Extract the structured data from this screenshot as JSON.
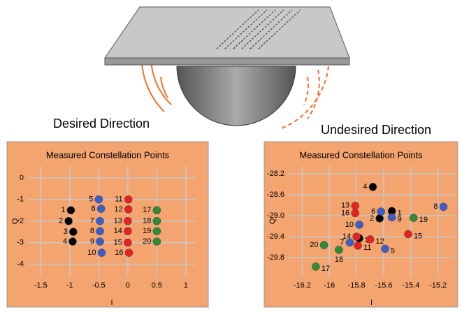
{
  "figure": {
    "labels": [
      "Desired Direction",
      "Undesired Direction"
    ]
  },
  "chart_data": [
    {
      "type": "scatter",
      "title": "Measured Constellation Points",
      "x_label": "I",
      "y_label": "Q",
      "xlim": [
        -1.72,
        1.17
      ],
      "ylim": [
        -4.6,
        0.58
      ],
      "xticks": [
        -1.5,
        -1,
        -0.5,
        0,
        0.5,
        1
      ],
      "yticks": [
        0,
        -1,
        -2,
        -3,
        -4
      ],
      "grid": true,
      "series": [
        {
          "color": "#000000",
          "point_labels": [
            1,
            2,
            3,
            4
          ],
          "x": [
            -0.98,
            -1.02,
            -0.94,
            -0.95
          ],
          "values": [
            -1.5,
            -2.0,
            -2.5,
            -2.95
          ]
        },
        {
          "color": "#3a5fcd",
          "point_labels": [
            5,
            6,
            7,
            8,
            9,
            10
          ],
          "x": [
            -0.5,
            -0.46,
            -0.48,
            -0.48,
            -0.48,
            -0.45
          ],
          "values": [
            -1.0,
            -1.43,
            -2.0,
            -2.47,
            -2.95,
            -3.47
          ]
        },
        {
          "color": "#e8231f",
          "point_labels": [
            11,
            12,
            13,
            14,
            15,
            16
          ],
          "x": [
            0.01,
            0.01,
            0,
            0,
            0,
            0.02
          ],
          "values": [
            -1.0,
            -1.46,
            -2.0,
            -2.47,
            -3.0,
            -3.47
          ]
        },
        {
          "color": "#2e8b3a",
          "point_labels": [
            17,
            18,
            19,
            20
          ],
          "x": [
            0.5,
            0.5,
            0.5,
            0.5
          ],
          "values": [
            -1.5,
            -2.0,
            -2.47,
            -2.95
          ]
        }
      ]
    },
    {
      "type": "scatter",
      "title": "Measured Constellation Points",
      "x_label": "I",
      "y_label": "Q",
      "xlim": [
        -16.3,
        -15.08
      ],
      "ylim": [
        -30.17,
        -28.04
      ],
      "xticks": [
        -16.2,
        -16.0,
        -15.8,
        -15.6,
        -15.4,
        -15.2
      ],
      "yticks": [
        -28.2,
        -28.6,
        {
          "value": -29,
          "label": "-29.0"
        },
        -29.4,
        -29.8
      ],
      "grid": true,
      "series": [
        {
          "color": "#000000",
          "point_labels": [
            4,
            1,
            2,
            3
          ],
          "x": [
            -15.68,
            -15.54,
            -15.63,
            -15.78
          ],
          "values": [
            -28.45,
            -28.91,
            -29.05,
            -29.43
          ]
        },
        {
          "color": "#e8231f",
          "point_labels": [
            13,
            16,
            15,
            14,
            12,
            11
          ],
          "x": [
            -15.81,
            -15.81,
            -15.42,
            -15.8,
            -15.7,
            -15.79
          ],
          "values": [
            -28.81,
            -28.95,
            -29.35,
            -29.4,
            -29.45,
            -29.57
          ]
        },
        {
          "color": "#3a5fcd",
          "point_labels": [
            6,
            9,
            8,
            10,
            7,
            5
          ],
          "x": [
            -15.62,
            -15.54,
            -15.16,
            -15.78,
            -15.85,
            -15.59
          ],
          "values": [
            -28.92,
            -29.03,
            -28.83,
            -29.17,
            -29.51,
            -29.63
          ]
        },
        {
          "color": "#2e8b3a",
          "point_labels": [
            19,
            20,
            18,
            17
          ],
          "x": [
            -15.38,
            -16.04,
            -15.93,
            -16.1
          ],
          "values": [
            -29.04,
            -29.56,
            -29.65,
            -29.97
          ]
        }
      ]
    }
  ]
}
